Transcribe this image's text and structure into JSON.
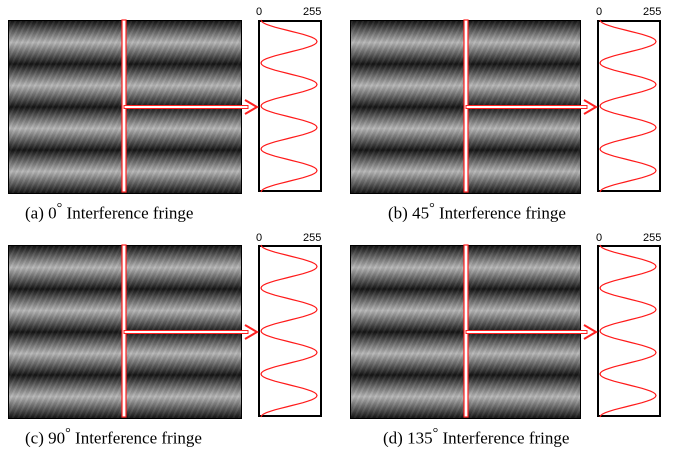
{
  "colors": {
    "profile_curve": "#ff1a1a",
    "marker_line": "#ff2020",
    "fringe_dark": "#141414",
    "fringe_bright": "#b8b8b8"
  },
  "axis": {
    "min_label": "0",
    "max_label": "255"
  },
  "panels": [
    {
      "caption_prefix": "(a)  0",
      "caption_suffix": "  Interference fringe",
      "angle_deg": 0,
      "bright_bands": 4
    },
    {
      "caption_prefix": "(b) 45",
      "caption_suffix": "  Interference fringe",
      "angle_deg": 45,
      "bright_bands": 4
    },
    {
      "caption_prefix": "(c)  90",
      "caption_suffix": "  Interference fringe",
      "angle_deg": 90,
      "bright_bands": 4
    },
    {
      "caption_prefix": "(d) 135",
      "caption_suffix": "  Interference fringe",
      "angle_deg": 135,
      "bright_bands": 4
    }
  ],
  "degree_symbol": "°"
}
